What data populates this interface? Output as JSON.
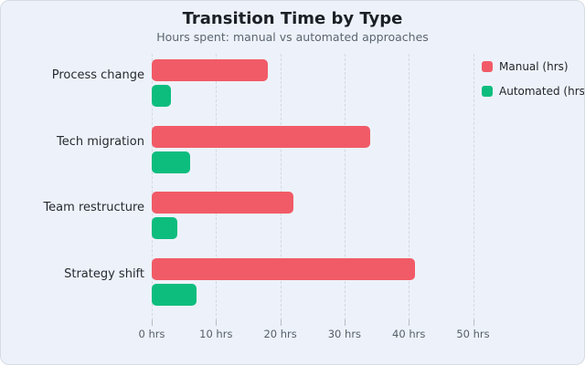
{
  "chart_data": {
    "type": "bar",
    "orientation": "horizontal",
    "title": "Transition Time by Type",
    "subtitle": "Hours spent: manual vs automated approaches",
    "categories": [
      "Process change",
      "Tech migration",
      "Team restructure",
      "Strategy shift"
    ],
    "series": [
      {
        "name": "Manual (hrs)",
        "color": "#f15b67",
        "values": [
          18,
          34,
          22,
          41
        ]
      },
      {
        "name": "Automated (hrs)",
        "color": "#0dbd7e",
        "values": [
          3,
          6,
          4,
          7
        ]
      }
    ],
    "x_ticks": [
      {
        "value": 0,
        "label": "0 hrs"
      },
      {
        "value": 10,
        "label": "10 hrs"
      },
      {
        "value": 20,
        "label": "20 hrs"
      },
      {
        "value": 30,
        "label": "30 hrs"
      },
      {
        "value": 40,
        "label": "40 hrs"
      },
      {
        "value": 50,
        "label": "50 hrs"
      }
    ],
    "xlim": [
      0,
      60
    ],
    "grid": "dashed-vertical",
    "legend_position": "top-right"
  },
  "colors": {
    "background": "#edf2fa",
    "grid": "#d3d9e1",
    "title": "#1b2026",
    "subtitle": "#5c6570",
    "axis_label": "#555e69",
    "category_label": "#262b31"
  }
}
